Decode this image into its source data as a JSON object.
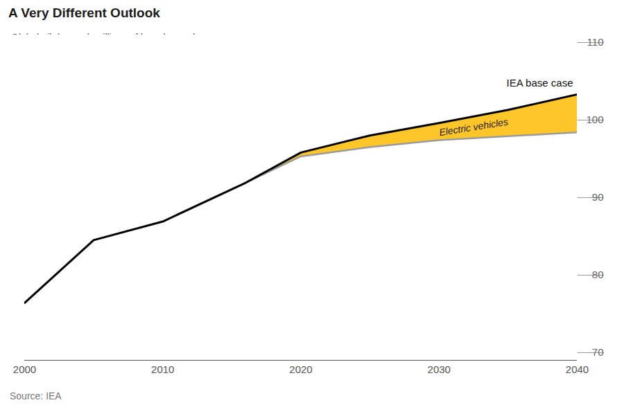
{
  "chart_data": {
    "type": "line",
    "title": "A Very Different Outlook",
    "subtitle": "Global oil demand, millions of barrels per day",
    "source": "Source: IEA",
    "x": [
      2000,
      2005,
      2010,
      2016,
      2020,
      2025,
      2030,
      2035,
      2040
    ],
    "series": [
      {
        "name": "IEA base case",
        "color": "#000000",
        "values": [
          77.4,
          85.5,
          87.9,
          92.9,
          96.8,
          99.0,
          100.6,
          102.3,
          104.3
        ]
      },
      {
        "color": "#9a9a9a",
        "values": [
          null,
          null,
          null,
          92.9,
          96.3,
          97.5,
          98.4,
          98.9,
          99.4
        ]
      }
    ],
    "band": {
      "label": "Electric vehicles",
      "color": "#ffc629"
    },
    "xlim": [
      2000,
      2040
    ],
    "xticks": [
      2000,
      2010,
      2020,
      2030,
      2040
    ],
    "ylim": [
      70,
      110
    ],
    "yticks": [
      70,
      80,
      90,
      100,
      110
    ]
  }
}
